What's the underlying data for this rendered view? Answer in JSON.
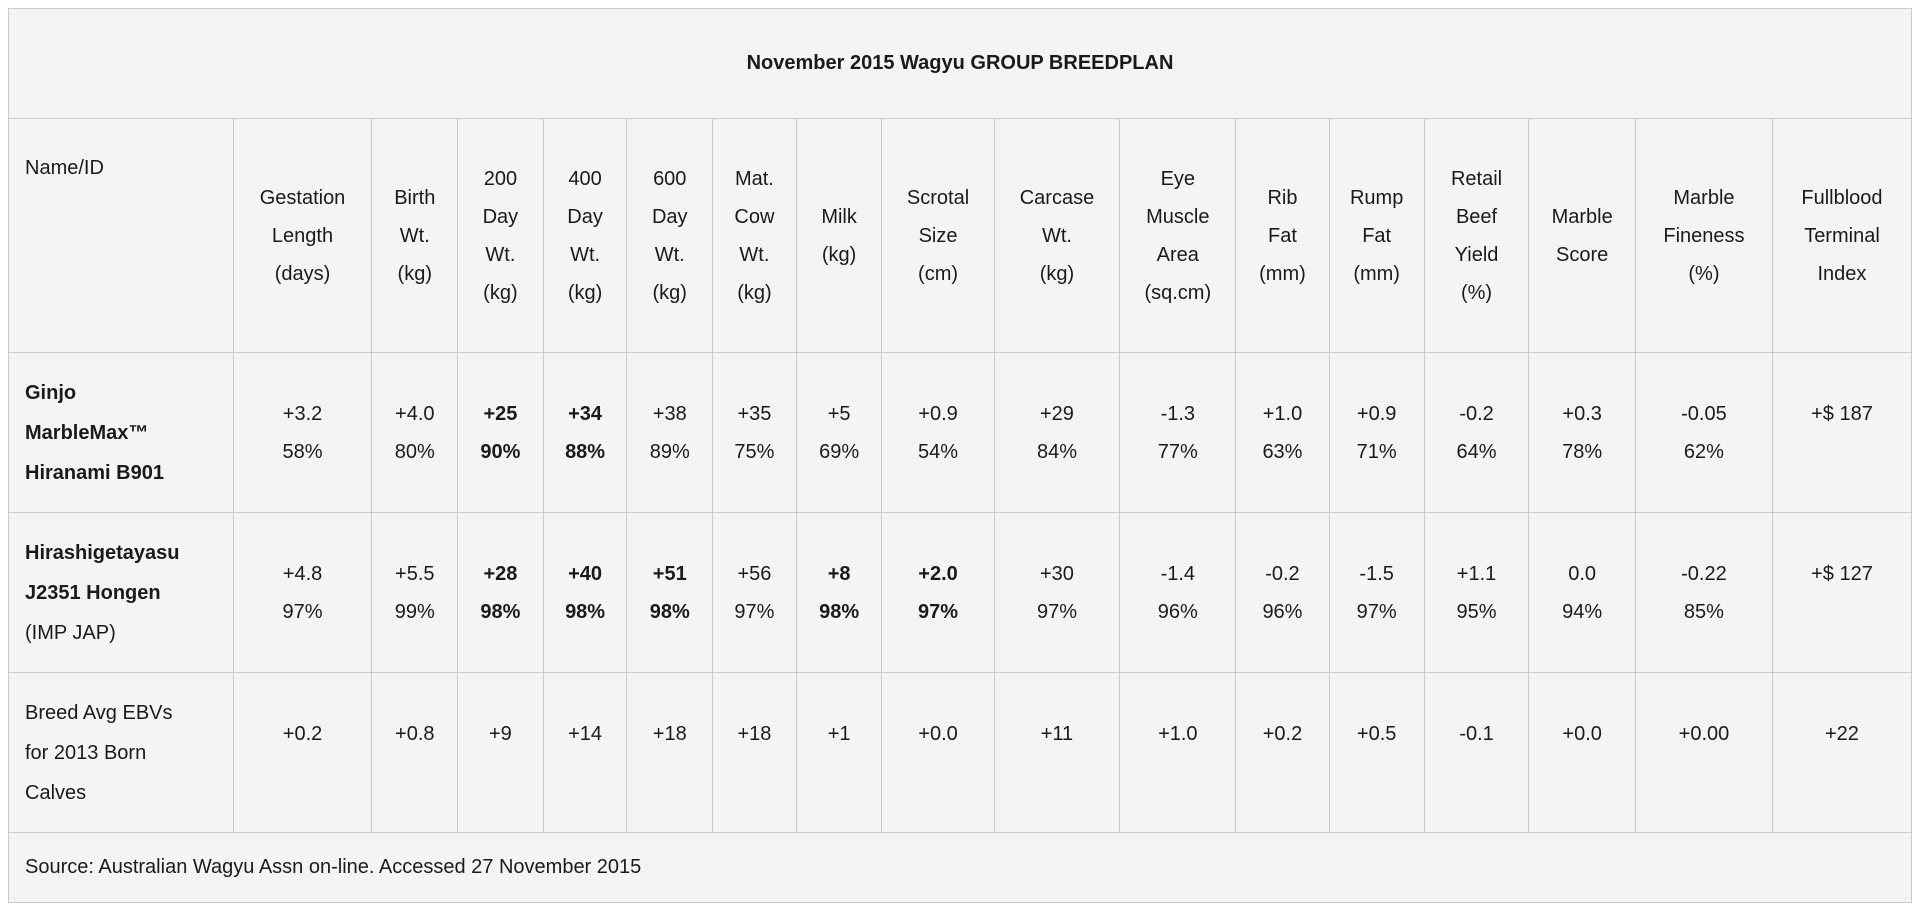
{
  "title": "November 2015 Wagyu GROUP BREEDPLAN",
  "source_note": "Source: Australian Wagyu Assn on-line. Accessed 27 November 2015",
  "colors": {
    "cell_background": "#f4f4f4",
    "border": "#c9c9c9",
    "text": "#1a1a1a",
    "page_background": "#ffffff"
  },
  "table": {
    "columns": [
      {
        "id": "name-id",
        "lines": [
          "Name/ID"
        ]
      },
      {
        "id": "gestation-length",
        "lines": [
          "Gestation",
          "Length",
          "(days)"
        ]
      },
      {
        "id": "birth-wt",
        "lines": [
          "Birth",
          "Wt.",
          "(kg)"
        ]
      },
      {
        "id": "200-day-wt",
        "lines": [
          "200",
          "Day",
          "Wt.",
          "(kg)"
        ]
      },
      {
        "id": "400-day-wt",
        "lines": [
          "400",
          "Day",
          "Wt.",
          "(kg)"
        ]
      },
      {
        "id": "600-day-wt",
        "lines": [
          "600",
          "Day",
          "Wt.",
          "(kg)"
        ]
      },
      {
        "id": "mat-cow-wt",
        "lines": [
          "Mat.",
          "Cow",
          "Wt.",
          "(kg)"
        ]
      },
      {
        "id": "milk",
        "lines": [
          "Milk",
          "(kg)"
        ]
      },
      {
        "id": "scrotal-size",
        "lines": [
          "Scrotal",
          "Size",
          "(cm)"
        ]
      },
      {
        "id": "carcase-wt",
        "lines": [
          "Carcase",
          "Wt.",
          "(kg)"
        ]
      },
      {
        "id": "eye-muscle-area",
        "lines": [
          "Eye",
          "Muscle",
          "Area",
          "(sq.cm)"
        ]
      },
      {
        "id": "rib-fat",
        "lines": [
          "Rib",
          "Fat",
          "(mm)"
        ]
      },
      {
        "id": "rump-fat",
        "lines": [
          "Rump",
          "Fat",
          "(mm)"
        ]
      },
      {
        "id": "retail-beef-yield",
        "lines": [
          "Retail",
          "Beef",
          "Yield",
          "(%)"
        ]
      },
      {
        "id": "marble-score",
        "lines": [
          "Marble",
          "Score"
        ]
      },
      {
        "id": "marble-fineness",
        "lines": [
          "Marble",
          "Fineness",
          "(%)"
        ]
      },
      {
        "id": "fullblood-terminal-index",
        "lines": [
          "Fullblood",
          "Terminal",
          "Index"
        ]
      }
    ],
    "rows": [
      {
        "id": "ginjo-marblemax-hiranami-b901",
        "name_lines": [
          {
            "text": "Ginjo",
            "bold": true
          },
          {
            "text": "MarbleMax™",
            "bold": true
          },
          {
            "text": "Hiranami B901",
            "bold": true
          }
        ],
        "cells": [
          {
            "ebv": "+3.2",
            "acc": "58%",
            "bold": false
          },
          {
            "ebv": "+4.0",
            "acc": "80%",
            "bold": false
          },
          {
            "ebv": "+25",
            "acc": "90%",
            "bold": true
          },
          {
            "ebv": "+34",
            "acc": "88%",
            "bold": true
          },
          {
            "ebv": "+38",
            "acc": "89%",
            "bold": false
          },
          {
            "ebv": "+35",
            "acc": "75%",
            "bold": false
          },
          {
            "ebv": "+5",
            "acc": "69%",
            "bold": false
          },
          {
            "ebv": "+0.9",
            "acc": "54%",
            "bold": false
          },
          {
            "ebv": "+29",
            "acc": "84%",
            "bold": false
          },
          {
            "ebv": "-1.3",
            "acc": "77%",
            "bold": false
          },
          {
            "ebv": "+1.0",
            "acc": "63%",
            "bold": false
          },
          {
            "ebv": "+0.9",
            "acc": "71%",
            "bold": false
          },
          {
            "ebv": "-0.2",
            "acc": "64%",
            "bold": false
          },
          {
            "ebv": "+0.3",
            "acc": "78%",
            "bold": false
          },
          {
            "ebv": "-0.05",
            "acc": "62%",
            "bold": false
          },
          {
            "ebv": "+$ 187",
            "acc": "",
            "bold": false
          }
        ]
      },
      {
        "id": "hirashigetayasu-j2351-hongen",
        "name_lines": [
          {
            "text": "Hirashigetayasu",
            "bold": true
          },
          {
            "text": "J2351 Hongen",
            "bold": true
          },
          {
            "text": "(IMP JAP)",
            "bold": false
          }
        ],
        "cells": [
          {
            "ebv": "+4.8",
            "acc": "97%",
            "bold": false
          },
          {
            "ebv": "+5.5",
            "acc": "99%",
            "bold": false
          },
          {
            "ebv": "+28",
            "acc": "98%",
            "bold": true
          },
          {
            "ebv": "+40",
            "acc": "98%",
            "bold": true
          },
          {
            "ebv": "+51",
            "acc": "98%",
            "bold": true
          },
          {
            "ebv": "+56",
            "acc": "97%",
            "bold": false
          },
          {
            "ebv": "+8",
            "acc": "98%",
            "bold": true
          },
          {
            "ebv": "+2.0",
            "acc": "97%",
            "bold": true
          },
          {
            "ebv": "+30",
            "acc": "97%",
            "bold": false
          },
          {
            "ebv": "-1.4",
            "acc": "96%",
            "bold": false
          },
          {
            "ebv": "-0.2",
            "acc": "96%",
            "bold": false
          },
          {
            "ebv": "-1.5",
            "acc": "97%",
            "bold": false
          },
          {
            "ebv": "+1.1",
            "acc": "95%",
            "bold": false
          },
          {
            "ebv": "0.0",
            "acc": "94%",
            "bold": false
          },
          {
            "ebv": "-0.22",
            "acc": "85%",
            "bold": false
          },
          {
            "ebv": "+$ 127",
            "acc": "",
            "bold": false
          }
        ]
      },
      {
        "id": "breed-avg-ebvs-2013-born-calves",
        "name_lines": [
          {
            "text": "Breed Avg EBVs",
            "bold": false
          },
          {
            "text": "for 2013 Born",
            "bold": false
          },
          {
            "text": "Calves",
            "bold": false
          }
        ],
        "cells": [
          {
            "ebv": "+0.2",
            "acc": "",
            "bold": false
          },
          {
            "ebv": "+0.8",
            "acc": "",
            "bold": false
          },
          {
            "ebv": "+9",
            "acc": "",
            "bold": false
          },
          {
            "ebv": "+14",
            "acc": "",
            "bold": false
          },
          {
            "ebv": "+18",
            "acc": "",
            "bold": false
          },
          {
            "ebv": "+18",
            "acc": "",
            "bold": false
          },
          {
            "ebv": "+1",
            "acc": "",
            "bold": false
          },
          {
            "ebv": "+0.0",
            "acc": "",
            "bold": false
          },
          {
            "ebv": "+11",
            "acc": "",
            "bold": false
          },
          {
            "ebv": "+1.0",
            "acc": "",
            "bold": false
          },
          {
            "ebv": "+0.2",
            "acc": "",
            "bold": false
          },
          {
            "ebv": "+0.5",
            "acc": "",
            "bold": false
          },
          {
            "ebv": "-0.1",
            "acc": "",
            "bold": false
          },
          {
            "ebv": "+0.0",
            "acc": "",
            "bold": false
          },
          {
            "ebv": "+0.00",
            "acc": "",
            "bold": false
          },
          {
            "ebv": "+22",
            "acc": "",
            "bold": false
          }
        ]
      }
    ]
  }
}
